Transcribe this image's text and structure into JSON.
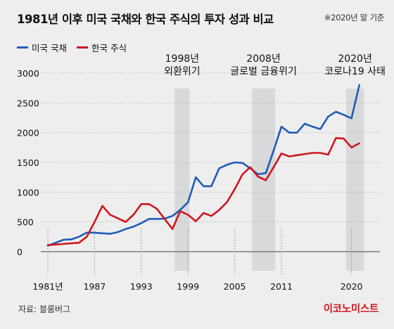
{
  "title": "1981년 이후 미국 국채와 한국 주식의 투자 성과 비교",
  "note": "※2020년 말 기준",
  "source": "자료: 블룸버그",
  "brand": "이코노미스트",
  "colors": {
    "us_bonds": "#1f5cb8",
    "korea_stocks": "#d0161e",
    "shade": "#d7d9db",
    "background": "#eeeeee"
  },
  "chart_data": {
    "type": "line",
    "title": "1981년 이후 미국 국채와 한국 주식의 투자 성과 비교",
    "xlabel": "",
    "ylabel": "",
    "xlim": [
      1981,
      2021.3
    ],
    "ylim": [
      -200,
      3100
    ],
    "x_ticks": [
      {
        "value": 1981,
        "label": "1981년"
      },
      {
        "value": 1987,
        "label": "1987"
      },
      {
        "value": 1993,
        "label": "1993"
      },
      {
        "value": 1999,
        "label": "1999"
      },
      {
        "value": 2005,
        "label": "2005"
      },
      {
        "value": 2011,
        "label": "2011"
      },
      {
        "value": 2020,
        "label": "2020"
      }
    ],
    "y_ticks": [
      0,
      500,
      1000,
      1500,
      2000,
      2500,
      3000
    ],
    "legend_position": "top-left",
    "grid": "horizontal",
    "series": [
      {
        "name": "미국 국채",
        "color": "#1f5cb8",
        "points": [
          [
            1981,
            100
          ],
          [
            1982,
            150
          ],
          [
            1983,
            200
          ],
          [
            1984,
            205
          ],
          [
            1985,
            250
          ],
          [
            1986,
            320
          ],
          [
            1987,
            320
          ],
          [
            1988,
            310
          ],
          [
            1989,
            300
          ],
          [
            1990,
            330
          ],
          [
            1991,
            380
          ],
          [
            1992,
            420
          ],
          [
            1993,
            480
          ],
          [
            1994,
            550
          ],
          [
            1995,
            550
          ],
          [
            1996,
            555
          ],
          [
            1997,
            600
          ],
          [
            1998,
            700
          ],
          [
            1999,
            830
          ],
          [
            2000,
            1250
          ],
          [
            2001,
            1100
          ],
          [
            2002,
            1100
          ],
          [
            2003,
            1400
          ],
          [
            2004,
            1460
          ],
          [
            2005,
            1500
          ],
          [
            2006,
            1490
          ],
          [
            2007,
            1400
          ],
          [
            2008,
            1300
          ],
          [
            2009,
            1320
          ],
          [
            2010,
            1700
          ],
          [
            2011,
            2100
          ],
          [
            2012,
            2000
          ],
          [
            2013,
            2000
          ],
          [
            2014,
            2150
          ],
          [
            2015,
            2100
          ],
          [
            2016,
            2060
          ],
          [
            2017,
            2270
          ],
          [
            2018,
            2350
          ],
          [
            2019,
            2300
          ],
          [
            2020,
            2240
          ],
          [
            2021,
            2800
          ]
        ]
      },
      {
        "name": "한국 주식",
        "color": "#d0161e",
        "points": [
          [
            1981,
            110
          ],
          [
            1982,
            120
          ],
          [
            1983,
            130
          ],
          [
            1984,
            140
          ],
          [
            1985,
            150
          ],
          [
            1986,
            250
          ],
          [
            1987,
            500
          ],
          [
            1988,
            770
          ],
          [
            1989,
            620
          ],
          [
            1990,
            560
          ],
          [
            1991,
            500
          ],
          [
            1992,
            620
          ],
          [
            1993,
            800
          ],
          [
            1994,
            800
          ],
          [
            1995,
            720
          ],
          [
            1996,
            550
          ],
          [
            1997,
            380
          ],
          [
            1998,
            680
          ],
          [
            1999,
            620
          ],
          [
            2000,
            510
          ],
          [
            2001,
            650
          ],
          [
            2002,
            600
          ],
          [
            2003,
            700
          ],
          [
            2004,
            830
          ],
          [
            2005,
            1050
          ],
          [
            2006,
            1300
          ],
          [
            2007,
            1420
          ],
          [
            2008,
            1260
          ],
          [
            2009,
            1200
          ],
          [
            2010,
            1420
          ],
          [
            2011,
            1650
          ],
          [
            2012,
            1600
          ],
          [
            2013,
            1620
          ],
          [
            2014,
            1640
          ],
          [
            2015,
            1660
          ],
          [
            2016,
            1660
          ],
          [
            2017,
            1630
          ],
          [
            2018,
            1910
          ],
          [
            2019,
            1900
          ],
          [
            2020,
            1750
          ],
          [
            2021,
            1820
          ]
        ]
      }
    ],
    "shaded_periods": [
      {
        "start": 1997.3,
        "end": 1999.2,
        "label_lines": [
          "1998년",
          "외환위기"
        ]
      },
      {
        "start": 2007.2,
        "end": 2010.2,
        "label_lines": [
          "2008년",
          "글로벌 금융위기"
        ]
      },
      {
        "start": 2019.3,
        "end": 2021.6,
        "label_lines": [
          "2020년",
          "코로나19 사태"
        ]
      }
    ]
  }
}
